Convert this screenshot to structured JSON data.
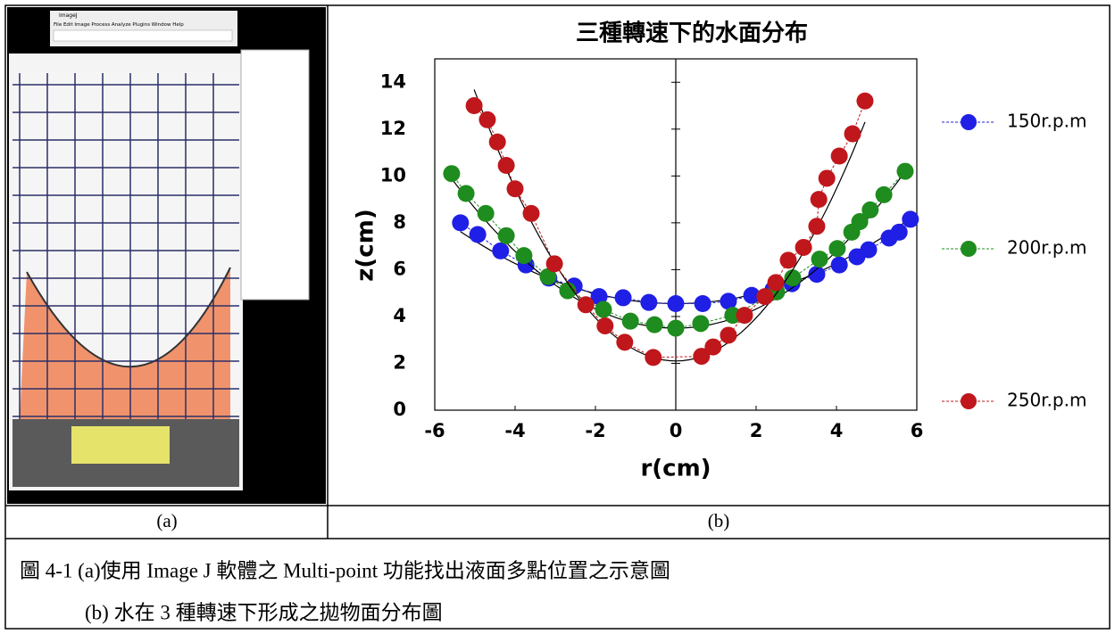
{
  "document": {
    "panel_a": {
      "window_title": "ImageJ",
      "menu": "File  Edit  Image  Process  Analyze  Plugins  Window  Help"
    },
    "labels": [
      "(a)",
      "(b)"
    ],
    "caption": [
      "圖 4-1 (a)使用 Image J 軟體之 Multi-point 功能找出液面多點位置之示意圖",
      "(b) 水在 3 種轉速下形成之拋物面分布圖"
    ]
  },
  "chart_data": {
    "type": "scatter",
    "title": "三種轉速下的水面分布",
    "x_label": "r(cm)",
    "y_label": "z(cm)",
    "xlim": [
      -6,
      6
    ],
    "ylim": [
      0,
      15
    ],
    "xticks": [
      -6,
      -4,
      -2,
      0,
      2,
      4,
      6
    ],
    "yticks": [
      0,
      2,
      4,
      6,
      8,
      10,
      12,
      14
    ],
    "legend": "right",
    "series": [
      {
        "name": "150r.p.m",
        "color": "#1f1fe6",
        "x": [
          -5.36,
          -4.93,
          -4.36,
          -3.73,
          -3.16,
          -2.53,
          -1.91,
          -1.31,
          -0.67,
          0,
          0.67,
          1.31,
          1.89,
          2.42,
          2.89,
          3.51,
          4.07,
          4.51,
          4.8,
          5.31,
          5.56,
          5.84
        ],
        "values": [
          8.0,
          7.5,
          6.8,
          6.2,
          5.64,
          5.3,
          4.85,
          4.8,
          4.6,
          4.55,
          4.55,
          4.65,
          4.9,
          5.15,
          5.4,
          5.8,
          6.2,
          6.55,
          6.85,
          7.35,
          7.6,
          8.15
        ],
        "fit": {
          "z0": 4.55,
          "k": 0.107
        }
      },
      {
        "name": "200r.p.m",
        "color": "#1e8c1e",
        "x": [
          -5.58,
          -5.22,
          -4.73,
          -4.22,
          -3.78,
          -3.18,
          -2.69,
          -1.8,
          -1.13,
          -0.53,
          0,
          0.62,
          1.42,
          2.51,
          2.91,
          3.58,
          4.02,
          4.38,
          4.58,
          4.84,
          5.18,
          5.71
        ],
        "values": [
          10.1,
          9.25,
          8.4,
          7.45,
          6.6,
          5.7,
          5.1,
          4.3,
          3.8,
          3.65,
          3.5,
          3.7,
          4.05,
          5.05,
          5.65,
          6.45,
          6.9,
          7.6,
          8.05,
          8.55,
          9.2,
          10.2
        ],
        "fit": {
          "z0": 3.5,
          "k": 0.205
        }
      },
      {
        "name": "250r.p.m",
        "color": "#c0171c",
        "x": [
          -5.02,
          -4.69,
          -4.44,
          -4.22,
          -4.0,
          -3.6,
          -3.02,
          -2.24,
          -1.76,
          -1.27,
          -0.56,
          0.64,
          0.93,
          1.31,
          1.71,
          2.22,
          2.49,
          2.8,
          3.18,
          3.51,
          3.56,
          3.76,
          4.07,
          4.4,
          4.71
        ],
        "values": [
          13.0,
          12.4,
          11.45,
          10.45,
          9.45,
          8.4,
          6.25,
          4.5,
          3.6,
          2.9,
          2.25,
          2.3,
          2.7,
          3.2,
          4.05,
          4.85,
          5.45,
          6.4,
          6.95,
          7.85,
          9.0,
          9.9,
          10.85,
          11.8,
          13.2
        ],
        "fit": {
          "z0": 2.1,
          "k": 0.46
        }
      }
    ]
  }
}
